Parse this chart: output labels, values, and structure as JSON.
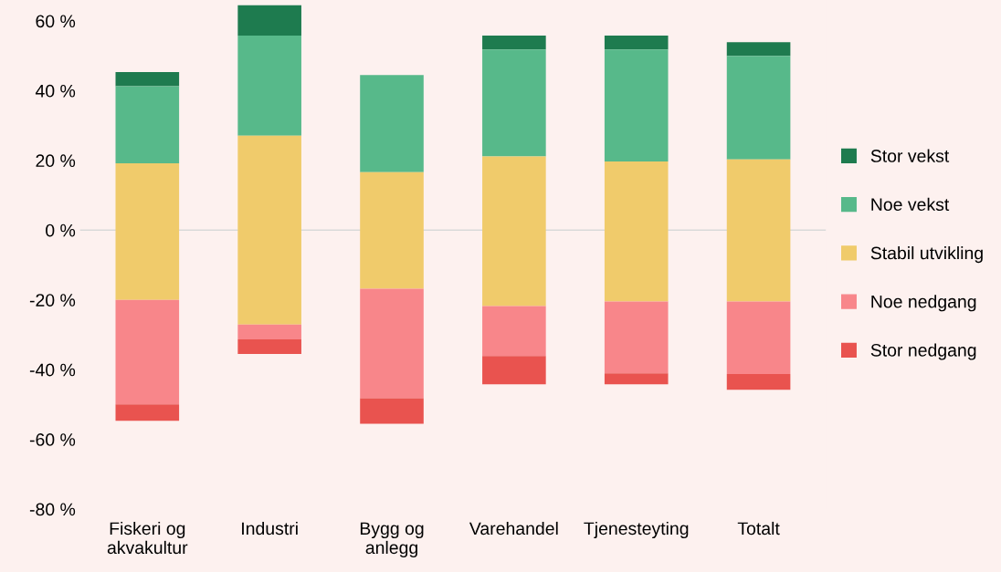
{
  "chart_data": {
    "type": "bar",
    "categories": [
      "Fiskeri og\nakvakultur",
      "Industri",
      "Bygg og\nanlegg",
      "Varehandel",
      "Tjenesteyting",
      "Totalt"
    ],
    "series": [
      {
        "name": "Stor vekst",
        "color": "#1e7b4f",
        "base": [
          41.3,
          55.8,
          null,
          51.8,
          51.8,
          50.0
        ],
        "values": [
          4.0,
          8.7,
          null,
          4.0,
          4.0,
          3.9
        ]
      },
      {
        "name": "Noe vekst",
        "color": "#57b98a",
        "base": [
          19.2,
          27.1,
          16.6,
          21.1,
          19.7,
          20.3
        ],
        "values": [
          22.1,
          28.7,
          27.9,
          30.7,
          32.1,
          29.7
        ]
      },
      {
        "name": "Stabil utvikling",
        "color": "#f0cb6b",
        "base": [
          -20.0,
          -27.1,
          -16.8,
          -21.8,
          -20.5,
          -20.5
        ],
        "values": [
          39.2,
          54.2,
          33.4,
          42.9,
          40.2,
          40.8
        ]
      },
      {
        "name": "Noe nedgang",
        "color": "#f8868a",
        "base": [
          -20.0,
          -27.1,
          -16.8,
          -21.8,
          -20.5,
          -20.5
        ],
        "values": [
          -30.0,
          -4.2,
          -31.4,
          -14.3,
          -20.6,
          -20.8
        ]
      },
      {
        "name": "Stor nedgang",
        "color": "#e9534f",
        "base": [
          -50.0,
          -31.3,
          -48.2,
          -36.1,
          -41.1,
          -41.3
        ],
        "values": [
          -4.7,
          -4.2,
          -7.3,
          -8.1,
          -3.1,
          -4.5
        ]
      }
    ],
    "ylim": [
      -80,
      66
    ],
    "yticks": [
      {
        "value": -80,
        "label": "-80 %"
      },
      {
        "value": -60,
        "label": "-60 %"
      },
      {
        "value": -40,
        "label": "-40 %"
      },
      {
        "value": -20,
        "label": "-20 %"
      },
      {
        "value": 0,
        "label": "0 %"
      },
      {
        "value": 20,
        "label": "20 %"
      },
      {
        "value": 40,
        "label": "40 %"
      },
      {
        "value": 60,
        "label": "60 %"
      }
    ],
    "ref_lines": [
      {
        "axis": "y",
        "value": 0,
        "label": null,
        "color": "#d9d9d9"
      }
    ],
    "grid": false,
    "legend": "right"
  }
}
